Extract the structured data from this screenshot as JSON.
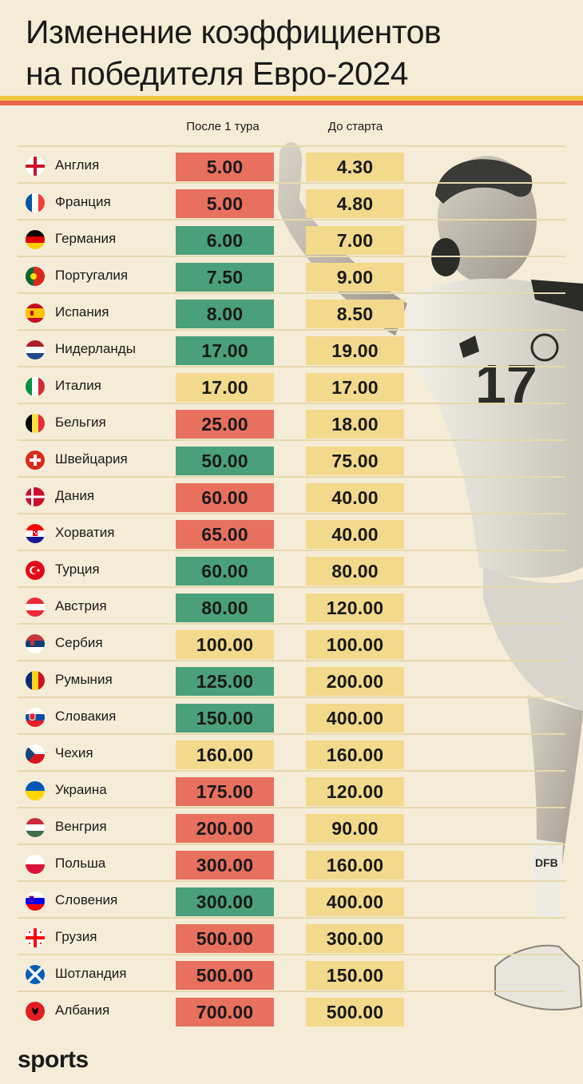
{
  "title": {
    "line1": "Изменение коэффициентов",
    "line2": "на победителя Евро-2024"
  },
  "columns": {
    "after_round1": "После 1 тура",
    "before_start": "До старта"
  },
  "colors": {
    "background": "#f4ecd6",
    "worse": "#e8705f",
    "better": "#4aa07a",
    "same": "#f2d98c",
    "stripe_yellow": "#f0c840",
    "stripe_red": "#e9664f"
  },
  "chart_data": {
    "type": "table",
    "columns": [
      "После 1 тура",
      "До старта"
    ],
    "rows": [
      {
        "country": "Англия",
        "flag": "england",
        "after": "5.00",
        "before": "4.30",
        "trend": "worse"
      },
      {
        "country": "Франция",
        "flag": "france",
        "after": "5.00",
        "before": "4.80",
        "trend": "worse"
      },
      {
        "country": "Германия",
        "flag": "germany",
        "after": "6.00",
        "before": "7.00",
        "trend": "better"
      },
      {
        "country": "Португалия",
        "flag": "portugal",
        "after": "7.50",
        "before": "9.00",
        "trend": "better"
      },
      {
        "country": "Испания",
        "flag": "spain",
        "after": "8.00",
        "before": "8.50",
        "trend": "better"
      },
      {
        "country": "Нидерланды",
        "flag": "netherlands",
        "after": "17.00",
        "before": "19.00",
        "trend": "better"
      },
      {
        "country": "Италия",
        "flag": "italy",
        "after": "17.00",
        "before": "17.00",
        "trend": "same"
      },
      {
        "country": "Бельгия",
        "flag": "belgium",
        "after": "25.00",
        "before": "18.00",
        "trend": "worse"
      },
      {
        "country": "Швейцария",
        "flag": "switzerland",
        "after": "50.00",
        "before": "75.00",
        "trend": "better"
      },
      {
        "country": "Дания",
        "flag": "denmark",
        "after": "60.00",
        "before": "40.00",
        "trend": "worse"
      },
      {
        "country": "Хорватия",
        "flag": "croatia",
        "after": "65.00",
        "before": "40.00",
        "trend": "worse"
      },
      {
        "country": "Турция",
        "flag": "turkey",
        "after": "60.00",
        "before": "80.00",
        "trend": "better"
      },
      {
        "country": "Австрия",
        "flag": "austria",
        "after": "80.00",
        "before": "120.00",
        "trend": "better"
      },
      {
        "country": "Сербия",
        "flag": "serbia",
        "after": "100.00",
        "before": "100.00",
        "trend": "same"
      },
      {
        "country": "Румыния",
        "flag": "romania",
        "after": "125.00",
        "before": "200.00",
        "trend": "better"
      },
      {
        "country": "Словакия",
        "flag": "slovakia",
        "after": "150.00",
        "before": "400.00",
        "trend": "better"
      },
      {
        "country": "Чехия",
        "flag": "czechia",
        "after": "160.00",
        "before": "160.00",
        "trend": "same"
      },
      {
        "country": "Украина",
        "flag": "ukraine",
        "after": "175.00",
        "before": "120.00",
        "trend": "worse"
      },
      {
        "country": "Венгрия",
        "flag": "hungary",
        "after": "200.00",
        "before": "90.00",
        "trend": "worse"
      },
      {
        "country": "Польша",
        "flag": "poland",
        "after": "300.00",
        "before": "160.00",
        "trend": "worse"
      },
      {
        "country": "Словения",
        "flag": "slovenia",
        "after": "300.00",
        "before": "400.00",
        "trend": "better"
      },
      {
        "country": "Грузия",
        "flag": "georgia",
        "after": "500.00",
        "before": "300.00",
        "trend": "worse"
      },
      {
        "country": "Шотландия",
        "flag": "scotland",
        "after": "500.00",
        "before": "150.00",
        "trend": "worse"
      },
      {
        "country": "Албания",
        "flag": "albania",
        "after": "700.00",
        "before": "500.00",
        "trend": "worse"
      }
    ]
  },
  "player_image": {
    "icon": "celebrating-player-photo",
    "shirt_number": "17",
    "shirt_text": "DFB"
  },
  "logo": {
    "text": "sports"
  }
}
